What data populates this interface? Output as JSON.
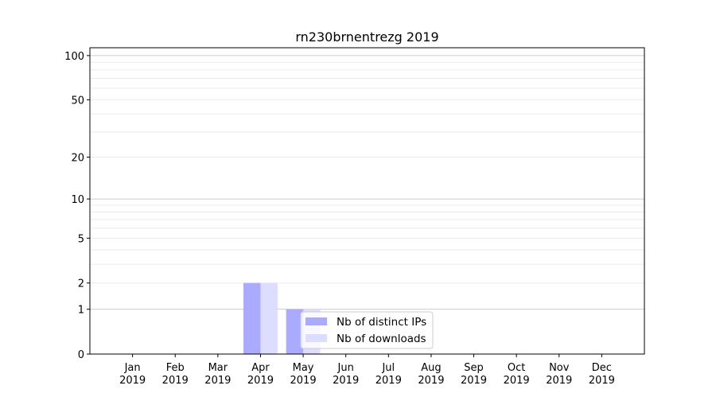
{
  "chart_data": {
    "type": "bar",
    "title": "rn230brnentrezg 2019",
    "xlabel": "",
    "ylabel": "",
    "yscale": "log(1+y)",
    "categories": [
      "Jan\n2019",
      "Feb\n2019",
      "Mar\n2019",
      "Apr\n2019",
      "May\n2019",
      "Jun\n2019",
      "Jul\n2019",
      "Aug\n2019",
      "Sep\n2019",
      "Oct\n2019",
      "Nov\n2019",
      "Dec\n2019"
    ],
    "series": [
      {
        "name": "Nb of distinct IPs",
        "color": "#aaaaff",
        "values": [
          0,
          0,
          0,
          2,
          1,
          0,
          0,
          0,
          0,
          0,
          0,
          0
        ]
      },
      {
        "name": "Nb of downloads",
        "color": "#ddddff",
        "values": [
          0,
          0,
          0,
          2,
          1,
          0,
          0,
          0,
          0,
          0,
          0,
          0
        ]
      }
    ],
    "yticks": [
      0,
      1,
      2,
      5,
      10,
      20,
      50,
      100
    ],
    "ylim": [
      0,
      113
    ],
    "xlim": [
      -1,
      12
    ],
    "grid": "horizontal, major at 1/10/100, minor at 2-9, 20-90",
    "legend": "lower-center"
  }
}
